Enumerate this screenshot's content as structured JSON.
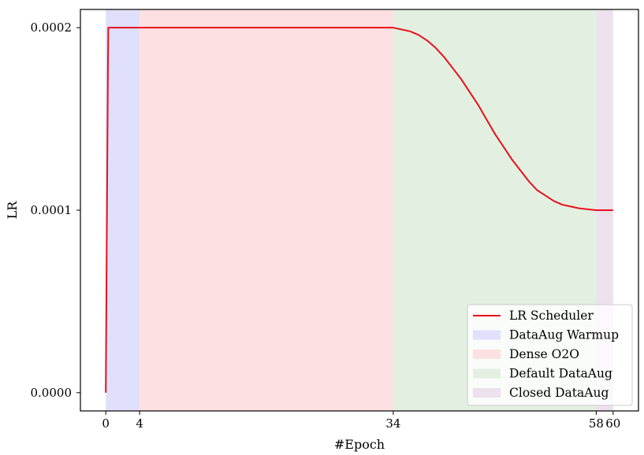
{
  "chart_data": {
    "type": "line",
    "xlabel": "#Epoch",
    "ylabel": "LR",
    "x_ticks": [
      {
        "value": 0,
        "label": "0"
      },
      {
        "value": 4,
        "label": "4"
      },
      {
        "value": 34,
        "label": "34"
      },
      {
        "value": 58,
        "label": "58"
      },
      {
        "value": 60,
        "label": "60"
      }
    ],
    "y_ticks": [
      {
        "value": 0.0,
        "label": "0.0000"
      },
      {
        "value": 0.0001,
        "label": "0.0001"
      },
      {
        "value": 0.0002,
        "label": "0.0002"
      }
    ],
    "xlim": [
      -3,
      63
    ],
    "ylim": [
      -1e-05,
      0.00021
    ],
    "grid": false,
    "legend_position": "bottom-right",
    "spans": [
      {
        "name": "DataAug Warmup",
        "x0": 0,
        "x1": 4,
        "color": "#e0e0fc"
      },
      {
        "name": "Dense O2O",
        "x0": 4,
        "x1": 34,
        "color": "#fde0e1"
      },
      {
        "name": "Default DataAug",
        "x0": 34,
        "x1": 58,
        "color": "#e2efe1"
      },
      {
        "name": "Closed DataAug",
        "x0": 58,
        "x1": 60,
        "color": "#ede1ee"
      }
    ],
    "series": [
      {
        "name": "LR Scheduler",
        "color": "#e8111a",
        "x": [
          0,
          0.05,
          0.1,
          0.15,
          0.2,
          0.25,
          0.3,
          34,
          35,
          36,
          37,
          38,
          39,
          40,
          41,
          42,
          43,
          44,
          45,
          46,
          47,
          48,
          49,
          50,
          51,
          52,
          53,
          54,
          55,
          56,
          57,
          58,
          60
        ],
        "y": [
          0.0,
          3.5e-05,
          7e-05,
          0.000105,
          0.00014,
          0.000175,
          0.0002,
          0.0002,
          0.000199,
          0.000198,
          0.000196,
          0.000193,
          0.000189,
          0.000184,
          0.000178,
          0.000172,
          0.000165,
          0.000158,
          0.00015,
          0.000142,
          0.000135,
          0.000128,
          0.000122,
          0.000116,
          0.000111,
          0.000108,
          0.000105,
          0.000103,
          0.000102,
          0.000101,
          0.0001005,
          0.0001,
          0.0001
        ]
      }
    ]
  }
}
